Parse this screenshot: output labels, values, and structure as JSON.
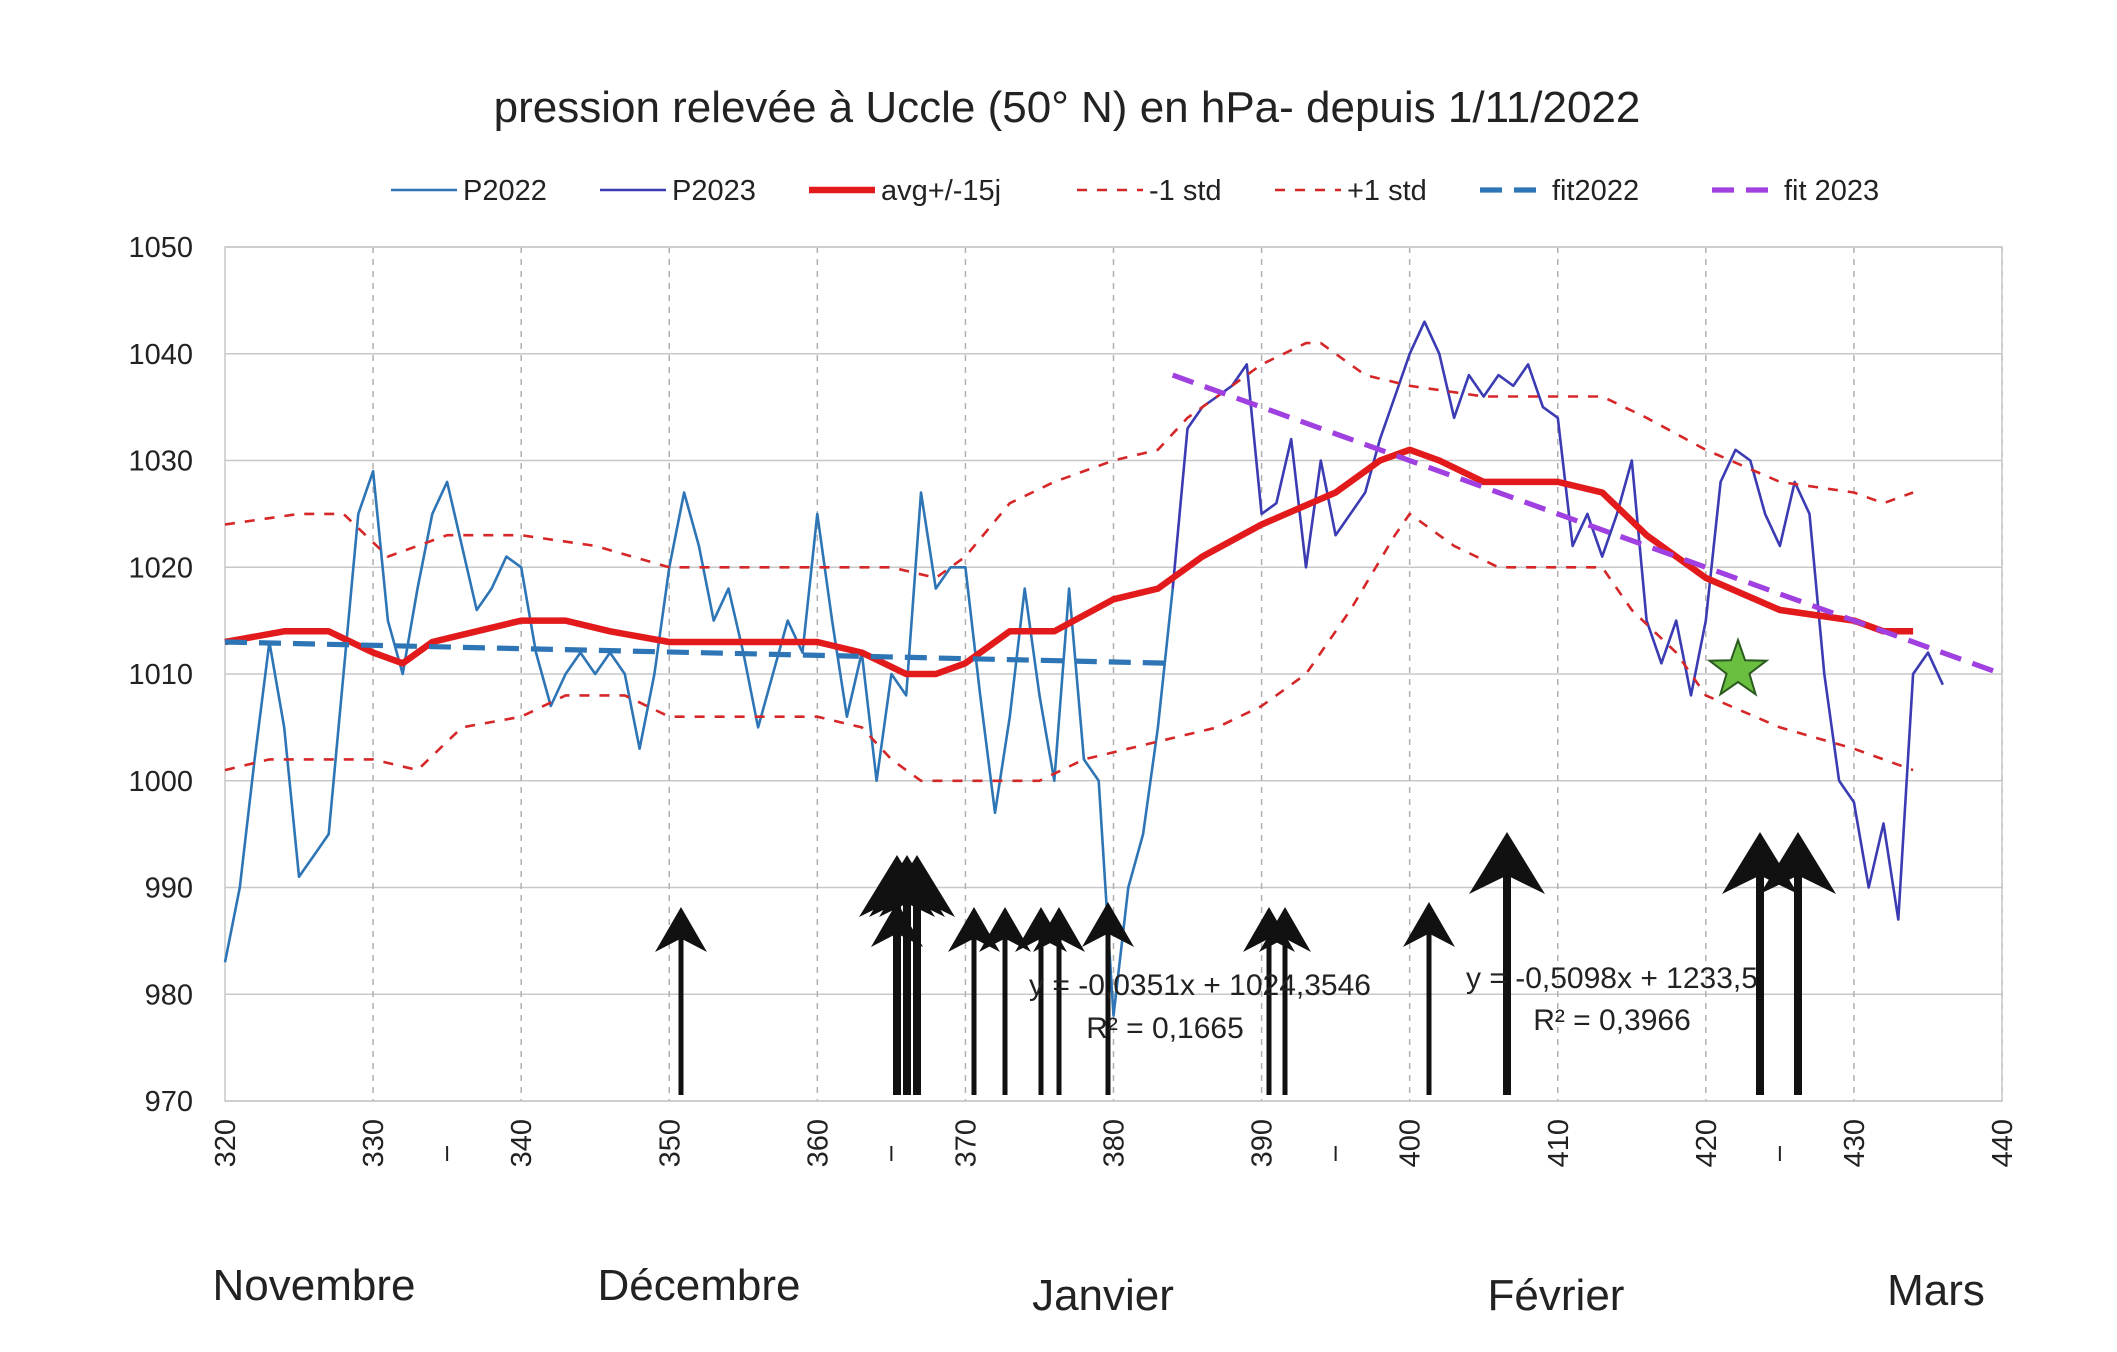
{
  "chart_data": {
    "type": "line",
    "title": "pression relevée à Uccle (50° N) en hPa- depuis 1/11/2022",
    "xlim": [
      320,
      440
    ],
    "xticks": [
      320,
      330,
      340,
      350,
      360,
      370,
      380,
      390,
      400,
      410,
      420,
      430,
      440
    ],
    "ylim": [
      970,
      1050
    ],
    "yticks": [
      970,
      980,
      990,
      1000,
      1010,
      1020,
      1030,
      1040,
      1050
    ],
    "grid": true,
    "legend": "top",
    "series": [
      {
        "name": "P2022",
        "color": "#2e75b6",
        "width": 2,
        "dash": false,
        "x": [
          320,
          321,
          322,
          323,
          324,
          325,
          326,
          327,
          328,
          329,
          330,
          331,
          332,
          333,
          334,
          335,
          336,
          337,
          338,
          339,
          340,
          341,
          342,
          343,
          344,
          345,
          346,
          347,
          348,
          349,
          350,
          351,
          352,
          353,
          354,
          355,
          356,
          357,
          358,
          359,
          360,
          361,
          362,
          363,
          364,
          365,
          366,
          367,
          368,
          369,
          370,
          371,
          372,
          373,
          374,
          375,
          376,
          377,
          378,
          379,
          380,
          381,
          382,
          383,
          384
        ],
        "values": [
          983,
          990,
          1002,
          1013,
          1005,
          991,
          993,
          995,
          1010,
          1025,
          1029,
          1015,
          1010,
          1018,
          1025,
          1028,
          1022,
          1016,
          1018,
          1021,
          1020,
          1012,
          1007,
          1010,
          1012,
          1010,
          1012,
          1010,
          1003,
          1010,
          1020,
          1027,
          1022,
          1015,
          1018,
          1012,
          1005,
          1010,
          1015,
          1012,
          1025,
          1015,
          1006,
          1012,
          1000,
          1010,
          1008,
          1027,
          1018,
          1020,
          1020,
          1008,
          997,
          1006,
          1018,
          1008,
          1000,
          1018,
          1002,
          1000,
          978,
          990,
          995,
          1005,
          1018
        ]
      },
      {
        "name": "P2023",
        "color": "#3b3bb3",
        "width": 2,
        "dash": false,
        "x": [
          384,
          385,
          386,
          387,
          388,
          389,
          390,
          391,
          392,
          393,
          394,
          395,
          396,
          397,
          398,
          399,
          400,
          401,
          402,
          403,
          404,
          405,
          406,
          407,
          408,
          409,
          410,
          411,
          412,
          413,
          414,
          415,
          416,
          417,
          418,
          419,
          420,
          421,
          422,
          423,
          424,
          425,
          426,
          427,
          428,
          429,
          430,
          431,
          432,
          433,
          434,
          435,
          436
        ],
        "values": [
          1018,
          1033,
          1035,
          1036,
          1037,
          1039,
          1025,
          1026,
          1032,
          1020,
          1030,
          1023,
          1025,
          1027,
          1032,
          1036,
          1040,
          1043,
          1040,
          1034,
          1038,
          1036,
          1038,
          1037,
          1039,
          1035,
          1034,
          1022,
          1025,
          1021,
          1025,
          1030,
          1015,
          1011,
          1015,
          1008,
          1015,
          1028,
          1031,
          1030,
          1025,
          1022,
          1028,
          1025,
          1010,
          1000,
          998,
          990,
          996,
          987,
          1010,
          1012,
          1009
        ]
      },
      {
        "name": "avg+/-15j",
        "color": "#e31a1c",
        "width": 5,
        "dash": false,
        "x": [
          320,
          324,
          327,
          330,
          332,
          334,
          337,
          340,
          343,
          346,
          350,
          355,
          360,
          363,
          366,
          368,
          370,
          373,
          376,
          380,
          383,
          386,
          390,
          395,
          398,
          400,
          402,
          405,
          410,
          413,
          416,
          420,
          425,
          430,
          432,
          434
        ],
        "values": [
          1013,
          1014,
          1014,
          1012,
          1011,
          1013,
          1014,
          1015,
          1015,
          1014,
          1013,
          1013,
          1013,
          1012,
          1010,
          1010,
          1011,
          1014,
          1014,
          1017,
          1018,
          1021,
          1024,
          1027,
          1030,
          1031,
          1030,
          1028,
          1028,
          1027,
          1023,
          1019,
          1016,
          1015,
          1014,
          1014
        ]
      },
      {
        "name": "-1 std",
        "color": "#d62728",
        "width": 2,
        "dash": true,
        "x": [
          320,
          323,
          327,
          330,
          333,
          336,
          340,
          343,
          347,
          350,
          355,
          360,
          363,
          365,
          367,
          370,
          375,
          378,
          381,
          384,
          387,
          390,
          393,
          396,
          399,
          400,
          403,
          406,
          410,
          413,
          415,
          418,
          420,
          425,
          430,
          434
        ],
        "values": [
          1001,
          1002,
          1002,
          1002,
          1001,
          1005,
          1006,
          1008,
          1008,
          1006,
          1006,
          1006,
          1005,
          1002,
          1000,
          1000,
          1000,
          1002,
          1003,
          1004,
          1005,
          1007,
          1010,
          1016,
          1023,
          1025,
          1022,
          1020,
          1020,
          1020,
          1016,
          1012,
          1008,
          1005,
          1003,
          1001
        ]
      },
      {
        "name": "+1 std",
        "color": "#d62728",
        "width": 2,
        "dash": true,
        "x": [
          320,
          325,
          328,
          331,
          335,
          340,
          345,
          350,
          355,
          360,
          365,
          368,
          370,
          373,
          376,
          380,
          383,
          385,
          388,
          390,
          393,
          394,
          397,
          400,
          405,
          410,
          413,
          416,
          420,
          425,
          430,
          432,
          434
        ],
        "values": [
          1024,
          1025,
          1025,
          1021,
          1023,
          1023,
          1022,
          1020,
          1020,
          1020,
          1020,
          1019,
          1021,
          1026,
          1028,
          1030,
          1031,
          1034,
          1037,
          1039,
          1041,
          1041,
          1038,
          1037,
          1036,
          1036,
          1036,
          1034,
          1031,
          1028,
          1027,
          1026,
          1027
        ]
      },
      {
        "name": "fit2022",
        "color": "#2e75b6",
        "width": 4,
        "dash": true,
        "x": [
          320,
          384
        ],
        "values": [
          1013,
          1011
        ]
      },
      {
        "name": "fit 2023",
        "color": "#a040e0",
        "width": 4,
        "dash": true,
        "x": [
          384,
          440
        ],
        "values": [
          1038,
          1010
        ]
      }
    ],
    "annotations": [
      "y = -0,0351x + 1024,3546",
      "R² = 0,1665",
      "y = -0,5098x + 1233,5",
      "R² = 0,3966"
    ],
    "month_labels": [
      "Novembre",
      "Décembre",
      "Janvier",
      "Février",
      "Mars"
    ]
  }
}
